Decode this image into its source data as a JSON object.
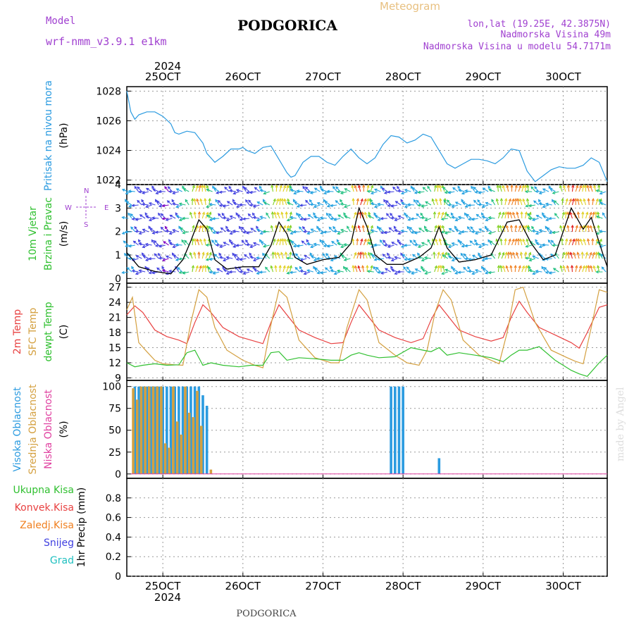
{
  "header": {
    "model_label": "Model",
    "model_name": "wrf-nmm_v3.9.1 e1km",
    "station": "PODGORICA",
    "meteogram": "Meteogram",
    "lonlat": "lon,lat (19.25E, 42.3875N)",
    "elevation": "Nadmorska Visina 49m",
    "model_elevation": "Nadmorska Visina u modelu 54.7171m",
    "year_top": "2024",
    "year_bottom": "2024",
    "footer_station": "PODGORICA",
    "credit": "made by Angel"
  },
  "colors": {
    "pressure": "#2b9be0",
    "t2m": "#e84040",
    "sfc": "#d4a040",
    "dew": "#30c030",
    "high_cloud": "#2b9be0",
    "mid_cloud": "#d4a040",
    "low_cloud": "#e040a0",
    "purple_text": "#a040d0",
    "grid": "#999999"
  },
  "chart_data": [
    {
      "type": "line",
      "title": "",
      "ylabel_parts": [
        {
          "text": "Pritisak na nivou mora",
          "color": "#2b9be0"
        },
        {
          "text": "(hPa)",
          "color": "#000000"
        }
      ],
      "x_ticks": [
        "25OCT",
        "26OCT",
        "27OCT",
        "28OCT",
        "29OCT",
        "30OCT"
      ],
      "x_range_days": [
        24.55,
        30.55
      ],
      "ylim": [
        1021.7,
        1028.3
      ],
      "yticks": [
        1022,
        1024,
        1026,
        1028
      ],
      "grid": true,
      "series": [
        {
          "values_desc": "hourly sea level pressure",
          "x": [
            24.55,
            24.6,
            24.65,
            24.7,
            24.8,
            24.9,
            25.0,
            25.1,
            25.15,
            25.2,
            25.25,
            25.3,
            25.4,
            25.5,
            25.55,
            25.65,
            25.75,
            25.85,
            25.95,
            26.0,
            26.05,
            26.15,
            26.25,
            26.35,
            26.45,
            26.55,
            26.6,
            26.65,
            26.75,
            26.85,
            26.95,
            27.05,
            27.15,
            27.25,
            27.35,
            27.45,
            27.55,
            27.65,
            27.75,
            27.85,
            27.95,
            28.05,
            28.15,
            28.25,
            28.35,
            28.45,
            28.55,
            28.65,
            28.75,
            28.85,
            28.95,
            29.05,
            29.15,
            29.25,
            29.35,
            29.45,
            29.55,
            29.65,
            29.75,
            29.85,
            29.95,
            30.05,
            30.15,
            30.25,
            30.35,
            30.45,
            30.55
          ],
          "values": [
            1028.0,
            1026.6,
            1026.1,
            1026.4,
            1026.6,
            1026.6,
            1026.3,
            1025.8,
            1025.2,
            1025.1,
            1025.2,
            1025.3,
            1025.2,
            1024.5,
            1023.8,
            1023.2,
            1023.6,
            1024.1,
            1024.1,
            1024.2,
            1024.0,
            1023.8,
            1024.2,
            1024.3,
            1023.4,
            1022.5,
            1022.2,
            1022.3,
            1023.2,
            1023.6,
            1023.6,
            1023.2,
            1023.0,
            1023.6,
            1024.1,
            1023.5,
            1023.1,
            1023.5,
            1024.4,
            1025.0,
            1024.9,
            1024.5,
            1024.7,
            1025.1,
            1024.9,
            1024.0,
            1023.1,
            1022.8,
            1023.1,
            1023.4,
            1023.4,
            1023.3,
            1023.1,
            1023.5,
            1024.1,
            1024.0,
            1022.6,
            1021.9,
            1022.3,
            1022.7,
            1022.9,
            1022.8,
            1022.8,
            1023.0,
            1023.5,
            1023.2,
            1021.9
          ]
        }
      ]
    },
    {
      "type": "line",
      "title": "",
      "ylabel_parts": [
        {
          "text": "10m Vjetar",
          "color": "#30c030"
        },
        {
          "text": "Brzina i Pravac",
          "color": "#30c030"
        },
        {
          "text": "(m/s)",
          "color": "#000000"
        }
      ],
      "compass": {
        "w": "W",
        "e": "E",
        "n": "N",
        "s": "S"
      },
      "ylim": [
        -0.2,
        4.0
      ],
      "yticks": [
        0,
        1,
        2,
        3,
        4
      ],
      "grid": true,
      "series": [
        {
          "name": "",
          "color": "#000000",
          "x": [
            24.55,
            24.7,
            24.9,
            25.1,
            25.25,
            25.35,
            25.45,
            25.55,
            25.65,
            25.8,
            26.0,
            26.2,
            26.35,
            26.45,
            26.55,
            26.65,
            26.8,
            27.0,
            27.2,
            27.35,
            27.45,
            27.55,
            27.65,
            27.8,
            28.0,
            28.2,
            28.35,
            28.45,
            28.55,
            28.7,
            28.9,
            29.1,
            29.3,
            29.45,
            29.6,
            29.75,
            29.9,
            30.1,
            30.25,
            30.35,
            30.5,
            30.55
          ],
          "values": [
            1.1,
            0.5,
            0.3,
            0.2,
            0.8,
            1.6,
            2.5,
            2.1,
            0.8,
            0.4,
            0.5,
            0.5,
            1.4,
            2.4,
            1.9,
            0.9,
            0.6,
            0.8,
            0.9,
            1.5,
            3.0,
            2.2,
            1.0,
            0.6,
            0.6,
            0.9,
            1.3,
            2.2,
            1.3,
            0.7,
            0.8,
            1.0,
            2.4,
            2.5,
            1.5,
            0.8,
            1.0,
            3.0,
            2.1,
            2.6,
            1.0,
            0.5
          ]
        }
      ],
      "arrow_color_scale": [
        "#8000c0",
        "#4040e0",
        "#20a0e0",
        "#20c080",
        "#80d020",
        "#e0d020",
        "#f08020",
        "#e02020"
      ]
    },
    {
      "type": "line",
      "title": "",
      "ylabel_parts": [
        {
          "text": "2m Temp",
          "color": "#e84040"
        },
        {
          "text": "SFC Temp",
          "color": "#d4a040"
        },
        {
          "text": "dewpt Temp",
          "color": "#30c030"
        },
        {
          "text": "(C)",
          "color": "#000000"
        }
      ],
      "ylim": [
        8.5,
        27.8
      ],
      "yticks": [
        9,
        12,
        15,
        18,
        21,
        24,
        27
      ],
      "grid": true,
      "series": [
        {
          "name": "2m Temp",
          "color": "#e84040",
          "x": [
            24.55,
            24.65,
            24.75,
            24.9,
            25.05,
            25.2,
            25.3,
            25.4,
            25.5,
            25.6,
            25.75,
            25.95,
            26.1,
            26.25,
            26.35,
            26.45,
            26.55,
            26.7,
            26.9,
            27.1,
            27.25,
            27.35,
            27.45,
            27.55,
            27.7,
            27.9,
            28.1,
            28.25,
            28.35,
            28.45,
            28.55,
            28.7,
            28.9,
            29.1,
            29.25,
            29.35,
            29.45,
            29.55,
            29.7,
            29.9,
            30.1,
            30.2,
            30.3,
            30.45,
            30.55
          ],
          "values": [
            21.5,
            23.3,
            22.0,
            18.5,
            17.2,
            16.5,
            15.8,
            20.0,
            23.5,
            22.0,
            19.0,
            17.2,
            16.5,
            15.8,
            20.0,
            23.5,
            21.5,
            18.5,
            17.0,
            15.8,
            16.0,
            20.0,
            23.5,
            21.5,
            18.5,
            17.0,
            16.0,
            16.8,
            20.5,
            23.5,
            21.5,
            18.5,
            17.2,
            16.3,
            17.0,
            21.0,
            24.2,
            22.0,
            19.0,
            17.5,
            16.0,
            14.9,
            18.0,
            23.0,
            23.5
          ]
        },
        {
          "name": "SFC Temp",
          "color": "#d4a040",
          "x": [
            24.55,
            24.62,
            24.7,
            24.8,
            24.9,
            25.0,
            25.15,
            25.25,
            25.35,
            25.45,
            25.55,
            25.65,
            25.8,
            26.0,
            26.15,
            26.25,
            26.35,
            26.45,
            26.55,
            26.7,
            26.9,
            27.1,
            27.2,
            27.3,
            27.45,
            27.55,
            27.7,
            27.9,
            28.05,
            28.2,
            28.3,
            28.4,
            28.5,
            28.6,
            28.75,
            28.95,
            29.1,
            29.2,
            29.3,
            29.4,
            29.5,
            29.65,
            29.85,
            30.05,
            30.15,
            30.25,
            30.35,
            30.45,
            30.55
          ],
          "values": [
            22.5,
            25.0,
            16.0,
            14.2,
            12.5,
            11.8,
            11.6,
            11.5,
            20.0,
            26.5,
            25.0,
            19.0,
            14.5,
            12.5,
            11.5,
            11.0,
            19.5,
            26.5,
            25.0,
            16.5,
            13.0,
            12.0,
            12.0,
            19.0,
            26.5,
            24.5,
            16.0,
            13.5,
            12.0,
            11.5,
            14.5,
            22.0,
            26.5,
            24.5,
            16.5,
            13.5,
            12.5,
            11.8,
            18.0,
            26.5,
            27.0,
            20.0,
            14.5,
            13.0,
            12.3,
            11.8,
            19.0,
            26.5,
            26.0
          ]
        },
        {
          "name": "dewpt Temp",
          "color": "#30c030",
          "x": [
            24.55,
            24.65,
            24.75,
            24.9,
            25.05,
            25.2,
            25.3,
            25.4,
            25.5,
            25.6,
            25.75,
            25.95,
            26.1,
            26.25,
            26.35,
            26.45,
            26.55,
            26.7,
            26.9,
            27.1,
            27.25,
            27.35,
            27.45,
            27.55,
            27.7,
            27.9,
            28.1,
            28.25,
            28.35,
            28.45,
            28.55,
            28.7,
            28.9,
            29.1,
            29.25,
            29.35,
            29.45,
            29.55,
            29.7,
            29.9,
            30.1,
            30.2,
            30.3,
            30.45,
            30.55
          ],
          "values": [
            12.0,
            11.2,
            11.5,
            11.8,
            11.5,
            11.6,
            14.0,
            14.5,
            11.5,
            12.0,
            11.5,
            11.2,
            11.5,
            11.5,
            14.0,
            14.2,
            12.5,
            13.0,
            12.8,
            12.5,
            12.5,
            13.5,
            14.0,
            13.5,
            13.0,
            13.2,
            15.0,
            14.5,
            14.2,
            15.0,
            13.5,
            14.0,
            13.5,
            13.0,
            12.2,
            13.5,
            14.5,
            14.5,
            15.2,
            12.5,
            10.5,
            9.8,
            9.3,
            12.0,
            13.5
          ]
        }
      ]
    },
    {
      "type": "bar",
      "title": "",
      "ylabel_parts": [
        {
          "text": "Visoka Oblacnost",
          "color": "#2b9be0"
        },
        {
          "text": "Srednja Oblacnost",
          "color": "#d4a040"
        },
        {
          "text": "Niska Oblacnost",
          "color": "#e040a0"
        },
        {
          "text": "(%)",
          "color": "#000000"
        }
      ],
      "ylim": [
        -5,
        107
      ],
      "yticks": [
        0,
        25,
        50,
        75,
        100
      ],
      "grid": true,
      "series": [
        {
          "name": "Visoka Oblacnost",
          "color": "#2b9be0",
          "x": [
            24.65,
            24.7,
            24.75,
            24.8,
            24.85,
            24.9,
            24.95,
            25.0,
            25.05,
            25.1,
            25.15,
            25.2,
            25.25,
            25.3,
            25.35,
            25.4,
            25.45,
            25.5,
            25.55,
            27.85,
            27.9,
            27.95,
            28.0,
            28.45
          ],
          "values": [
            100,
            100,
            100,
            100,
            100,
            100,
            100,
            100,
            100,
            100,
            100,
            100,
            100,
            100,
            100,
            100,
            100,
            90,
            78,
            100,
            100,
            100,
            100,
            18
          ]
        },
        {
          "name": "Srednja Oblacnost",
          "color": "#d4a040",
          "x": [
            24.63,
            24.68,
            24.73,
            24.78,
            24.83,
            24.88,
            24.93,
            24.98,
            25.03,
            25.08,
            25.13,
            25.18,
            25.23,
            25.28,
            25.33,
            25.38,
            25.43,
            25.48,
            25.6
          ],
          "values": [
            98,
            85,
            100,
            100,
            100,
            100,
            100,
            100,
            35,
            30,
            100,
            60,
            45,
            100,
            70,
            65,
            95,
            55,
            5
          ]
        }
      ]
    },
    {
      "type": "line",
      "title": "",
      "ylabel_parts": [
        {
          "text": "1hr Precip (mm)",
          "color": "#000000"
        }
      ],
      "legend": [
        {
          "text": "Ukupna Kisa",
          "color": "#30c030"
        },
        {
          "text": "Konvek.Kisa",
          "color": "#e84040"
        },
        {
          "text": "Zaledj.Kisa",
          "color": "#f08020"
        },
        {
          "text": "Snijeg",
          "color": "#4040e0"
        },
        {
          "text": "Grad",
          "color": "#20c0c0"
        }
      ],
      "ylim": [
        0,
        1.0
      ],
      "yticks": [
        0,
        0.2,
        0.4,
        0.6,
        0.8
      ],
      "grid": true,
      "series": []
    }
  ]
}
